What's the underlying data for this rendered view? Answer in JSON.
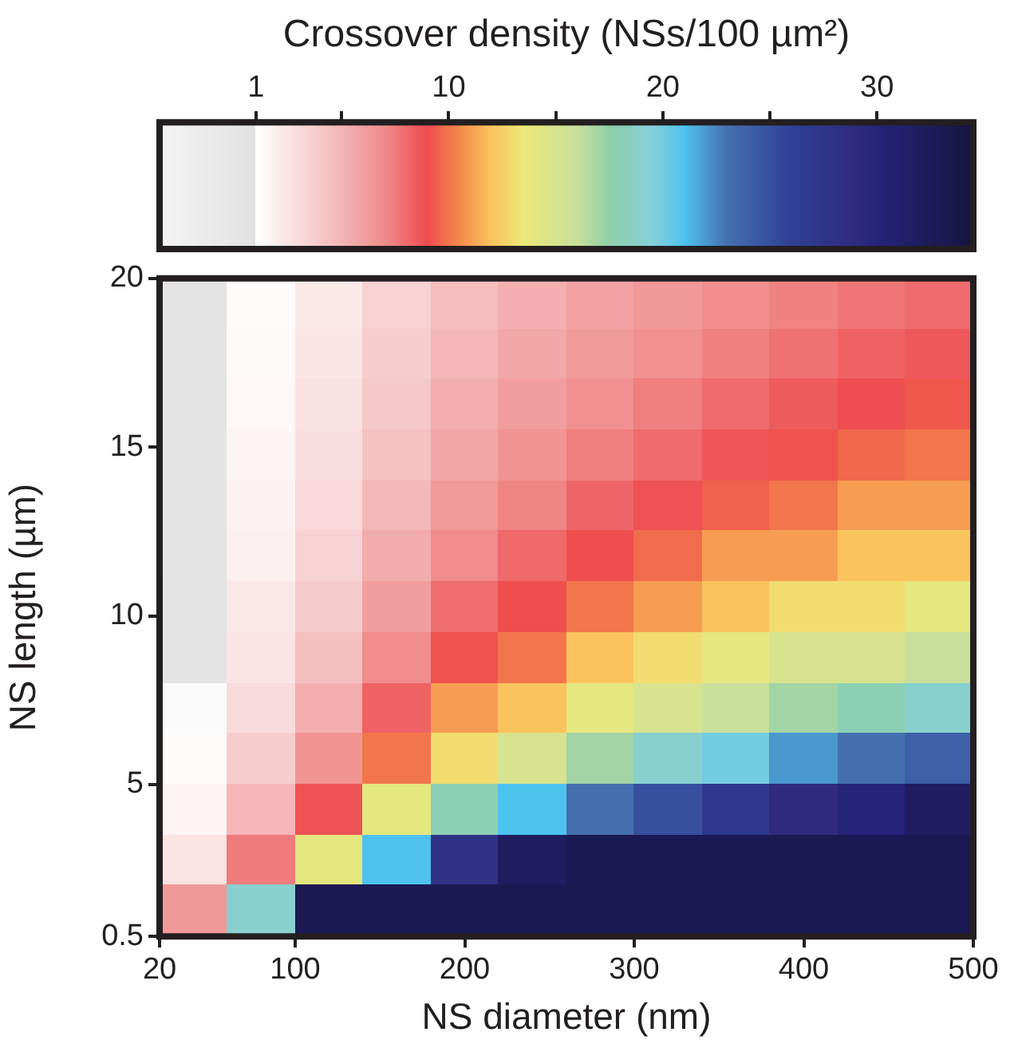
{
  "chart_data": {
    "type": "heatmap",
    "xlabel": "NS diameter (nm)",
    "ylabel": "NS length (µm)",
    "clabel": "Crossover density (NSs/100 µm²)",
    "x": [
      40,
      80,
      120,
      160,
      200,
      240,
      280,
      320,
      360,
      400,
      440,
      480
    ],
    "y": [
      19.25,
      17.75,
      16.25,
      14.75,
      13.25,
      11.75,
      10.25,
      8.75,
      7.25,
      5.75,
      4.25,
      2.75,
      1.25
    ],
    "cells": [
      [
        0.4,
        1.2,
        2.2,
        3.5,
        4.6,
        5.2,
        5.9,
        6.4,
        6.9,
        7.3,
        7.7,
        8.0
      ],
      [
        0.4,
        1.3,
        2.4,
        3.7,
        4.9,
        5.6,
        6.3,
        6.8,
        7.4,
        7.8,
        8.3,
        8.6
      ],
      [
        0.5,
        1.4,
        2.6,
        4.0,
        5.3,
        6.1,
        6.8,
        7.4,
        8.0,
        8.5,
        8.9,
        9.3
      ],
      [
        0.5,
        1.6,
        2.8,
        4.4,
        5.7,
        6.6,
        7.4,
        8.0,
        8.7,
        9.2,
        9.7,
        10
      ],
      [
        0.6,
        1.7,
        3.1,
        4.8,
        6.3,
        7.2,
        8.2,
        8.8,
        9.5,
        10,
        11,
        11
      ],
      [
        0.6,
        1.9,
        3.5,
        5.4,
        7.0,
        8.1,
        9.1,
        9.8,
        11,
        11,
        12,
        12
      ],
      [
        0.7,
        2.2,
        3.9,
        6.1,
        7.9,
        9.1,
        10,
        11,
        12,
        13,
        13,
        14
      ],
      [
        0.8,
        2.5,
        4.5,
        7.0,
        9.2,
        10,
        12,
        13,
        14,
        15,
        15,
        16
      ],
      [
        1.0,
        3.0,
        5.3,
        8.3,
        11,
        12,
        14,
        15,
        16,
        17,
        18,
        19
      ],
      [
        1.2,
        3.7,
        6.6,
        10,
        13,
        15,
        17,
        19,
        20,
        22,
        23,
        24
      ],
      [
        1.6,
        4.9,
        8.8,
        14,
        18,
        21,
        23,
        25,
        27,
        29,
        30,
        32
      ],
      [
        2.5,
        7.5,
        14,
        21,
        28,
        32,
        33,
        33,
        33,
        33,
        33,
        33
      ],
      [
        6.4,
        19,
        33,
        33,
        33,
        33,
        33,
        33,
        33,
        33,
        33,
        33
      ]
    ],
    "xlim": [
      20,
      500
    ],
    "xticks": [
      20,
      100,
      200,
      300,
      400,
      500
    ],
    "ylim": [
      0.5,
      20
    ],
    "yticks": [
      0.5,
      5,
      10,
      15,
      20
    ],
    "clim": [
      -3.5,
      34.5
    ],
    "cticks": [
      1,
      {
        "value": 5,
        "label": null
      },
      10,
      {
        "value": 15,
        "label": null
      },
      20,
      {
        "value": 25,
        "label": null
      },
      30
    ]
  }
}
